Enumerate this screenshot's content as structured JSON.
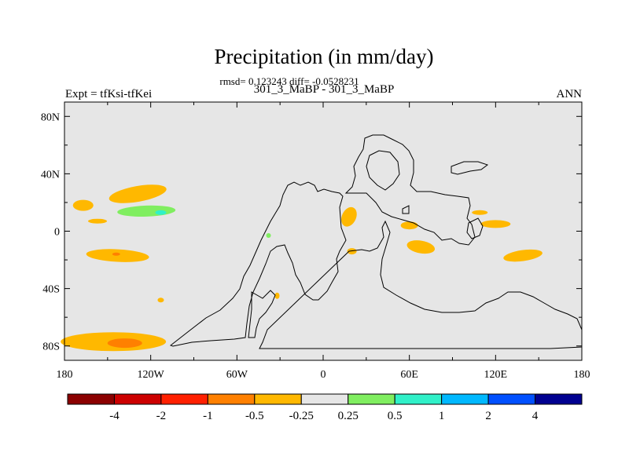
{
  "chart_data": {
    "type": "heatmap",
    "title": "Precipitation (in mm/day)",
    "stats_line": "rmsd= 0.123243 diff= -0.0528231",
    "comparison": "301_3_MaBP - 301_3_MaBP",
    "left_label": "Expt = tfKsi-tfKei",
    "right_label": "ANN",
    "x_axis": {
      "range": [
        -180,
        180
      ],
      "ticks": [
        -180,
        -120,
        -60,
        0,
        60,
        120,
        180
      ],
      "tick_labels": [
        "180",
        "120W",
        "60W",
        "0",
        "60E",
        "120E",
        "180"
      ]
    },
    "y_axis": {
      "range": [
        -90,
        90
      ],
      "ticks": [
        80,
        40,
        0,
        -40,
        -80
      ],
      "tick_labels": [
        "80N",
        "40N",
        "0",
        "40S",
        "80S"
      ]
    },
    "colorbar": {
      "levels": [
        "-4",
        "-2",
        "-1",
        "-0.5",
        "-0.25",
        "0.25",
        "0.5",
        "1",
        "2",
        "4"
      ],
      "colors": [
        "#8b0000",
        "#cc0000",
        "#ff2000",
        "#ff8000",
        "#ffb800",
        "#e6e6e6",
        "#80ee60",
        "#30f0c8",
        "#00b8ff",
        "#0050ff",
        "#000090"
      ]
    },
    "anomalies": [
      {
        "region": "North Pacific",
        "lon": -129,
        "lat": 26,
        "color": "#ffb800"
      },
      {
        "region": "Far West Pacific",
        "lon": -167,
        "lat": 18,
        "color": "#ffb800"
      },
      {
        "region": "Central Pacific",
        "lon": -157,
        "lat": 7,
        "color": "#ffb800"
      },
      {
        "region": "Subtropical North Pacific",
        "lon": -123,
        "lat": 14,
        "color": "#80ee60"
      },
      {
        "region": "Subtropical North Pacific core",
        "lon": -113,
        "lat": 13,
        "color": "#30f0c8"
      },
      {
        "region": "South Pacific",
        "lon": -143,
        "lat": -17,
        "color": "#ffb800"
      },
      {
        "region": "South Pacific core",
        "lon": -144,
        "lat": -16,
        "color": "#ff8000"
      },
      {
        "region": "Southern Ocean Pacific sector",
        "lon": -146,
        "lat": -77,
        "color": "#ffb800"
      },
      {
        "region": "Southern Ocean core",
        "lon": -138,
        "lat": -78,
        "color": "#ff8000"
      },
      {
        "region": "Mid-latitude South Pacific",
        "lon": -113,
        "lat": -48,
        "color": "#ffb800"
      },
      {
        "region": "North Africa",
        "lon": 18,
        "lat": 10,
        "color": "#ffb800"
      },
      {
        "region": "Arabian Sea",
        "lon": 60,
        "lat": 4,
        "color": "#ffb800"
      },
      {
        "region": "Indian Ocean",
        "lon": 68,
        "lat": -11,
        "color": "#ffb800"
      },
      {
        "region": "Tropical Pacific west",
        "lon": 120,
        "lat": 5,
        "color": "#ffb800"
      },
      {
        "region": "Western Pacific",
        "lon": 109,
        "lat": 13,
        "color": "#ffb800"
      },
      {
        "region": "South Pacific east",
        "lon": 139,
        "lat": -17,
        "color": "#ffb800"
      },
      {
        "region": "South America south",
        "lon": -32,
        "lat": -45,
        "color": "#ffb800"
      },
      {
        "region": "South Atlantic",
        "lon": 20,
        "lat": -14,
        "color": "#ffb800"
      },
      {
        "region": "Equatorial Atlantic",
        "lon": -38,
        "lat": -3,
        "color": "#80ee60"
      }
    ]
  }
}
